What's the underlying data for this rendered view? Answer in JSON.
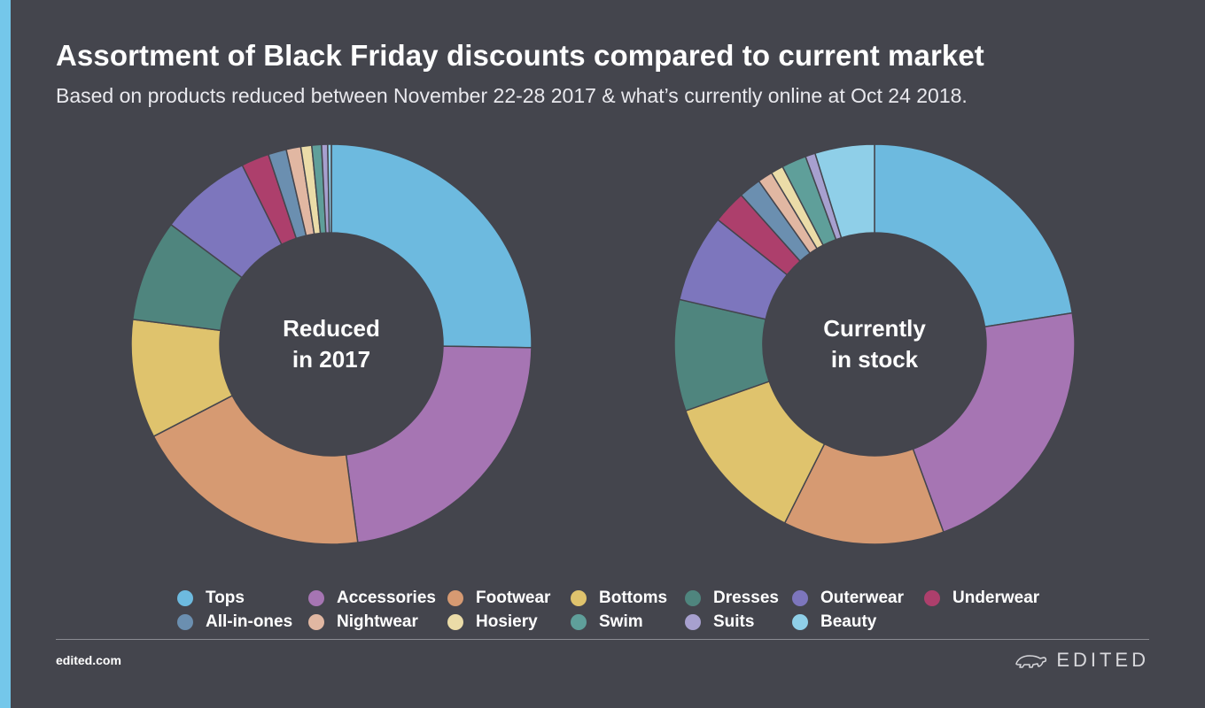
{
  "header": {
    "title": "Assortment of Black Friday discounts compared to current market",
    "subtitle": "Based on products reduced between November 22-28 2017 & what’s currently online at Oct 24 2018."
  },
  "chart_data": [
    {
      "type": "pie",
      "variant": "donut",
      "center_label_lines": [
        "Reduced",
        "in 2017"
      ],
      "categories": [
        "Tops",
        "Accessories",
        "Footwear",
        "Bottoms",
        "Dresses",
        "Outerwear",
        "Underwear",
        "All-in-ones",
        "Nightwear",
        "Hosiery",
        "Swim",
        "Suits",
        "Beauty"
      ],
      "values": [
        25.8,
        23.1,
        19.9,
        9.8,
        8.4,
        7.6,
        2.3,
        1.5,
        1.2,
        0.9,
        0.8,
        0.5,
        0.3
      ],
      "unit": "%"
    },
    {
      "type": "pie",
      "variant": "donut",
      "center_label_lines": [
        "Currently",
        "in stock"
      ],
      "categories": [
        "Tops",
        "Accessories",
        "Footwear",
        "Bottoms",
        "Dresses",
        "Outerwear",
        "Underwear",
        "All-in-ones",
        "Nightwear",
        "Hosiery",
        "Swim",
        "Suits",
        "Beauty"
      ],
      "values": [
        22.5,
        21.9,
        13.0,
        12.2,
        9.0,
        7.1,
        2.7,
        1.8,
        1.2,
        1.0,
        2.0,
        0.8,
        4.8
      ],
      "unit": "%"
    }
  ],
  "legend": {
    "placement": "bottom",
    "items": [
      {
        "label": "Tops",
        "color": "#6dbadf"
      },
      {
        "label": "Accessories",
        "color": "#a675b3"
      },
      {
        "label": "Footwear",
        "color": "#d69a72"
      },
      {
        "label": "Bottoms",
        "color": "#dfc36d"
      },
      {
        "label": "Dresses",
        "color": "#4f857e"
      },
      {
        "label": "Outerwear",
        "color": "#7d76bd"
      },
      {
        "label": "Underwear",
        "color": "#ad3f6c"
      },
      {
        "label": "All-in-ones",
        "color": "#6b8fb0"
      },
      {
        "label": "Nightwear",
        "color": "#e1b7a2"
      },
      {
        "label": "Hosiery",
        "color": "#ebdca8"
      },
      {
        "label": "Swim",
        "color": "#5f9f9a"
      },
      {
        "label": "Suits",
        "color": "#a7a0cf"
      },
      {
        "label": "Beauty",
        "color": "#8fcfe8"
      }
    ]
  },
  "footer": {
    "site": "edited.com",
    "brand": "EDITED",
    "brand_icon": "polar-bear-icon"
  },
  "colors": {
    "background": "#44454d",
    "accent_bar": "#74c7ea"
  }
}
